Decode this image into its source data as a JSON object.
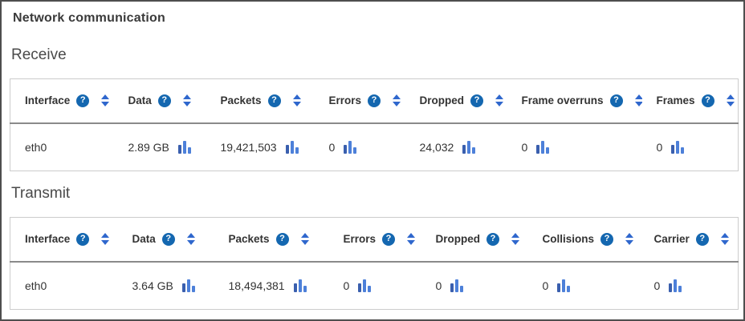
{
  "panel": {
    "title": "Network communication"
  },
  "icons": {
    "help_glyph": "?",
    "help": "help-icon",
    "sort": "sort-toggle-icon",
    "chart": "bar-chart-icon"
  },
  "colors": {
    "help_icon_bg": "#1467b0",
    "sort_arrow": "#2f67cd",
    "chart_bar_dark": "#3a5fae",
    "chart_bar_light": "#4d80d9",
    "header_separator": "#8a8a8a",
    "table_border": "#cccccc"
  },
  "receive": {
    "heading": "Receive",
    "columns": [
      {
        "label": "Interface"
      },
      {
        "label": "Data"
      },
      {
        "label": "Packets"
      },
      {
        "label": "Errors"
      },
      {
        "label": "Dropped"
      },
      {
        "label": "Frame overruns"
      },
      {
        "label": "Frames"
      }
    ],
    "rows": [
      {
        "cells": [
          "eth0",
          "2.89 GB",
          "19,421,503",
          "0",
          "24,032",
          "0",
          "0"
        ]
      }
    ]
  },
  "transmit": {
    "heading": "Transmit",
    "columns": [
      {
        "label": "Interface"
      },
      {
        "label": "Data"
      },
      {
        "label": "Packets"
      },
      {
        "label": "Errors"
      },
      {
        "label": "Dropped"
      },
      {
        "label": "Collisions"
      },
      {
        "label": "Carrier"
      }
    ],
    "rows": [
      {
        "cells": [
          "eth0",
          "3.64 GB",
          "18,494,381",
          "0",
          "0",
          "0",
          "0"
        ]
      }
    ]
  }
}
